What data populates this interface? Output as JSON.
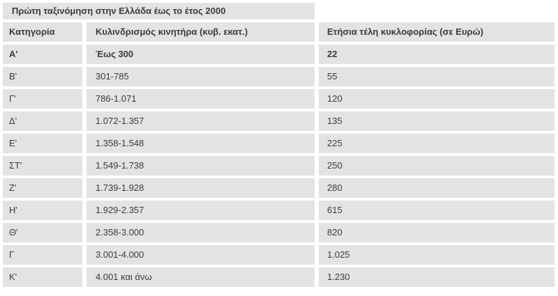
{
  "colors": {
    "band": "#e3e3e6",
    "text": "#3b3b3b",
    "background": "#ffffff"
  },
  "table": {
    "title": "Πρώτη ταξινόμηση στην Ελλάδα έως το έτος 2000",
    "columns": {
      "category": "Κατηγορία",
      "displacement": "Κυλινδρισμός κινητήρα (κυβ. εκατ.)",
      "fee": "Ετήσια τέλη κυκλοφορίας (σε Ευρώ)"
    },
    "rows": [
      {
        "category": "Α'",
        "displacement": "Έως 300",
        "fee": "22"
      },
      {
        "category": "Β'",
        "displacement": "301-785",
        "fee": "55"
      },
      {
        "category": "Γ'",
        "displacement": "786-1.071",
        "fee": "120"
      },
      {
        "category": "Δ'",
        "displacement": "1.072-1.357",
        "fee": "135"
      },
      {
        "category": "Ε'",
        "displacement": "1.358-1.548",
        "fee": "225"
      },
      {
        "category": "ΣΤ'",
        "displacement": "1.549-1.738",
        "fee": "250"
      },
      {
        "category": "Ζ'",
        "displacement": "1.739-1.928",
        "fee": "280"
      },
      {
        "category": "Η'",
        "displacement": "1.929-2.357",
        "fee": "615"
      },
      {
        "category": "Θ'",
        "displacement": "2.358-3.000",
        "fee": "820"
      },
      {
        "category": "Γ",
        "displacement": "3.001-4.000",
        "fee": "1.025"
      },
      {
        "category": "Κ'",
        "displacement": "4.001 και άνω",
        "fee": "1.230"
      }
    ]
  }
}
